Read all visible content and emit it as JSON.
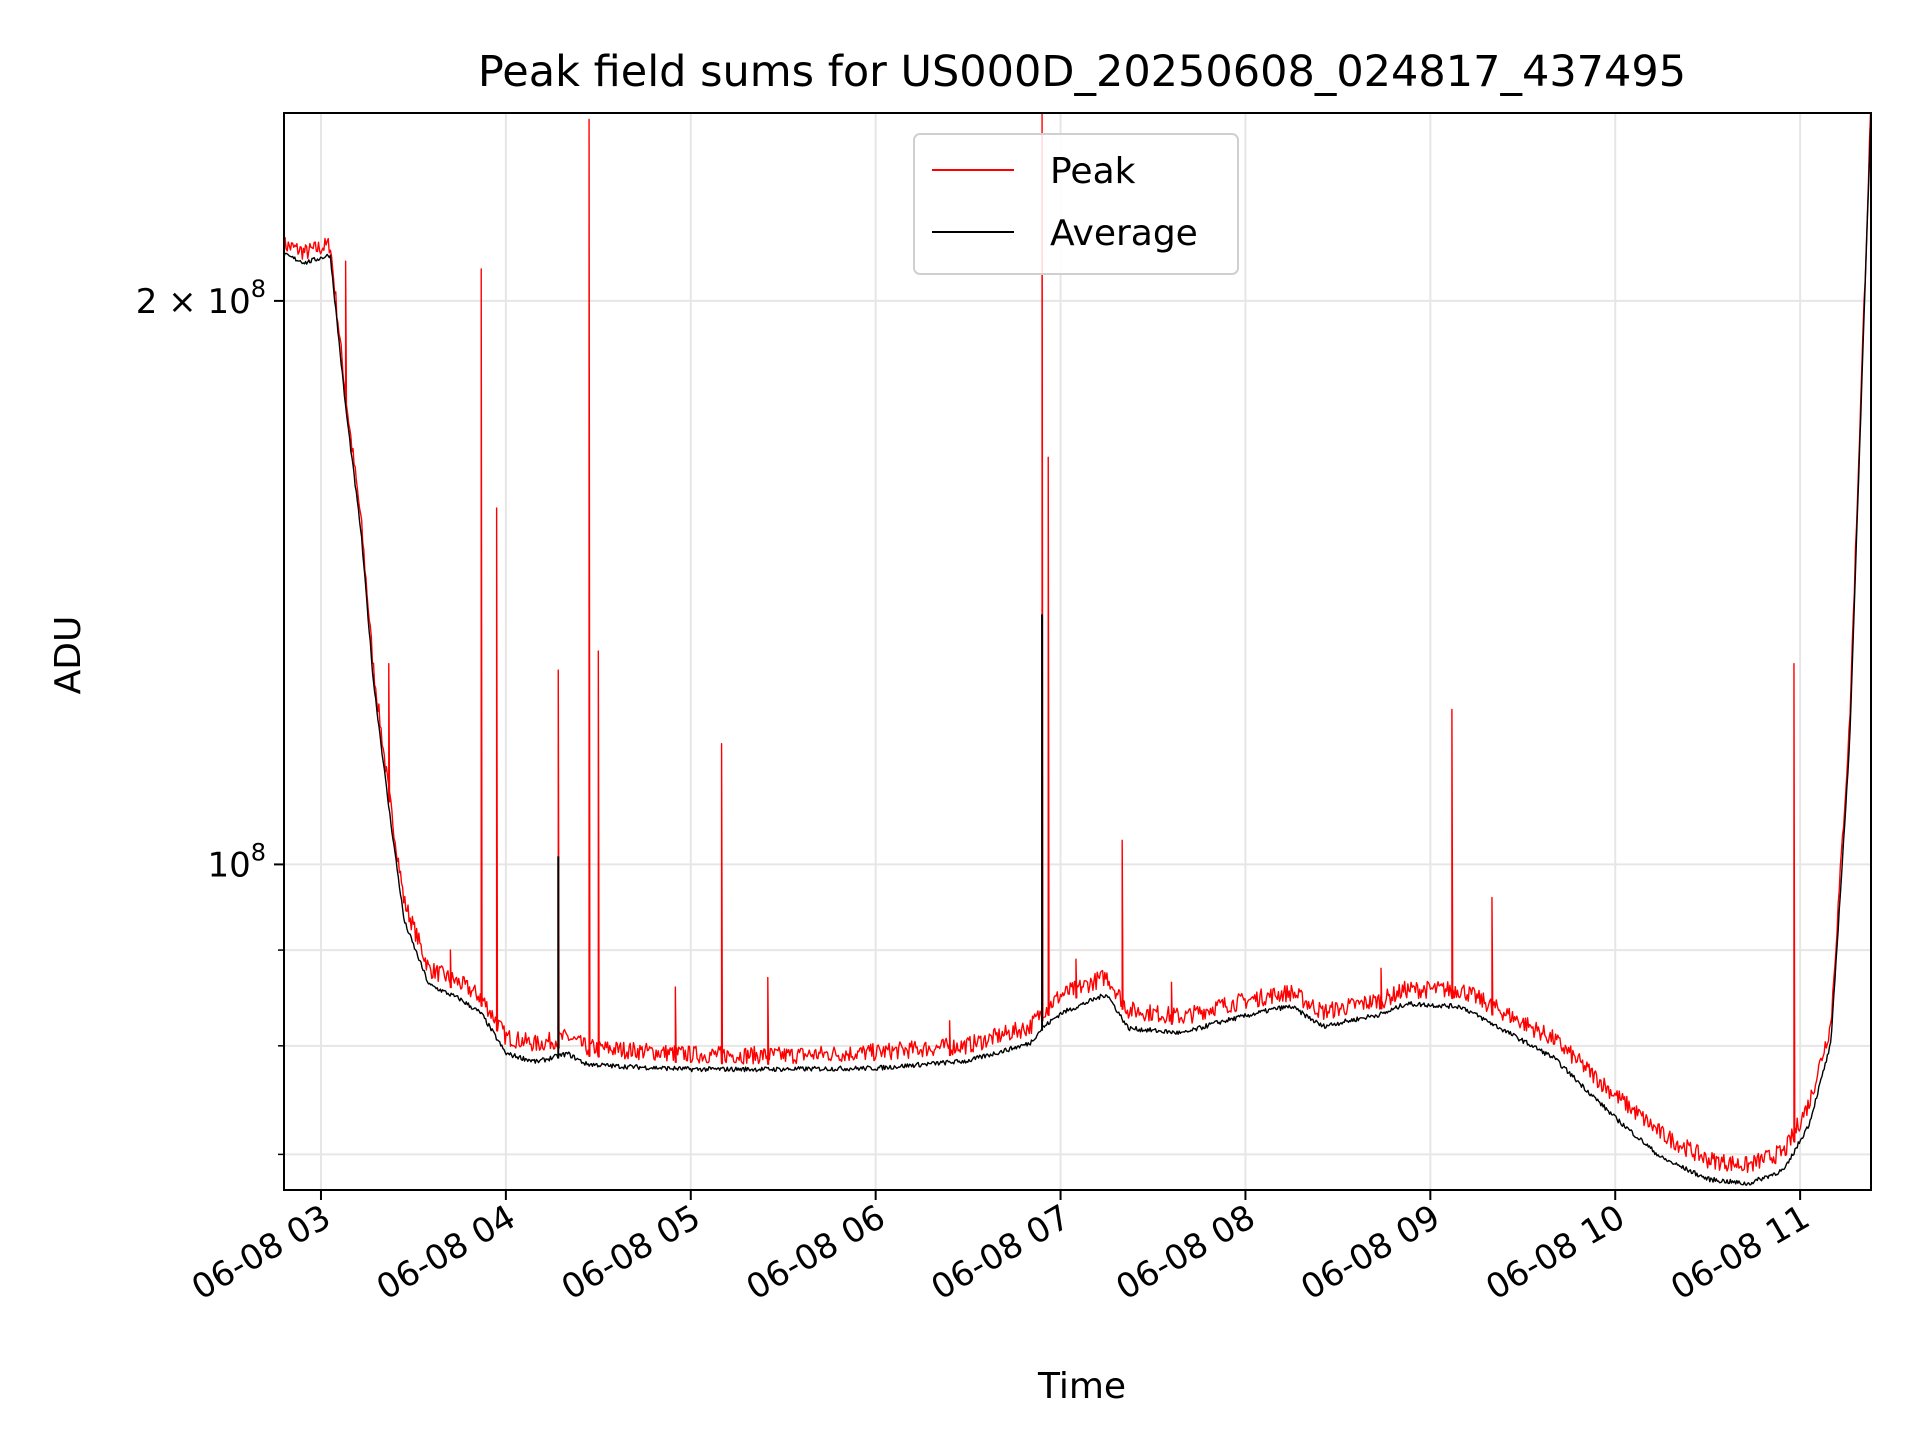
{
  "chart_data": {
    "type": "line",
    "title": "Peak field sums for US000D_20250608_024817_437495",
    "xlabel": "Time",
    "ylabel": "ADU",
    "y_scale": "log",
    "xlim": [
      "2025-06-08 02:48",
      "2025-06-08 11:23"
    ],
    "ylim": [
      67000000,
      252000000
    ],
    "grid": true,
    "legend": {
      "placement": "top-center",
      "entries": [
        "Peak",
        "Average"
      ]
    },
    "x_ticks": [
      {
        "value": "2025-06-08 03:00",
        "label": "06-08 03"
      },
      {
        "value": "2025-06-08 04:00",
        "label": "06-08 04"
      },
      {
        "value": "2025-06-08 05:00",
        "label": "06-08 05"
      },
      {
        "value": "2025-06-08 06:00",
        "label": "06-08 06"
      },
      {
        "value": "2025-06-08 07:00",
        "label": "06-08 07"
      },
      {
        "value": "2025-06-08 08:00",
        "label": "06-08 08"
      },
      {
        "value": "2025-06-08 09:00",
        "label": "06-08 09"
      },
      {
        "value": "2025-06-08 10:00",
        "label": "06-08 10"
      },
      {
        "value": "2025-06-08 11:00",
        "label": "06-08 11"
      }
    ],
    "y_major_ticks": [
      {
        "value": 100000000,
        "base": "10",
        "exp": "8",
        "mult": ""
      },
      {
        "value": 200000000,
        "base": "10",
        "exp": "8",
        "mult": "2 × "
      }
    ],
    "y_minor_ticks": [
      70000000,
      80000000,
      90000000
    ],
    "series": [
      {
        "name": "Average",
        "color": "#000000",
        "x": [
          "2025-06-08 02:48",
          "2025-06-08 02:55",
          "2025-06-08 03:03",
          "2025-06-08 03:08",
          "2025-06-08 03:13",
          "2025-06-08 03:17",
          "2025-06-08 03:22",
          "2025-06-08 03:27",
          "2025-06-08 03:35",
          "2025-06-08 03:45",
          "2025-06-08 03:52",
          "2025-06-08 03:56",
          "2025-06-08 04:00",
          "2025-06-08 04:10",
          "2025-06-08 04:20",
          "2025-06-08 04:26",
          "2025-06-08 04:35",
          "2025-06-08 05:00",
          "2025-06-08 05:30",
          "2025-06-08 06:00",
          "2025-06-08 06:30",
          "2025-06-08 06:50",
          "2025-06-08 06:54",
          "2025-06-08 07:00",
          "2025-06-08 07:15",
          "2025-06-08 07:22",
          "2025-06-08 07:40",
          "2025-06-08 07:50",
          "2025-06-08 08:10",
          "2025-06-08 08:15",
          "2025-06-08 08:25",
          "2025-06-08 08:45",
          "2025-06-08 08:52",
          "2025-06-08 09:10",
          "2025-06-08 09:40",
          "2025-06-08 10:00",
          "2025-06-08 10:15",
          "2025-06-08 10:30",
          "2025-06-08 10:43",
          "2025-06-08 10:55",
          "2025-06-08 11:03",
          "2025-06-08 11:10",
          "2025-06-08 11:16",
          "2025-06-08 11:23"
        ],
        "values": [
          211000000,
          209000000,
          211000000,
          175000000,
          150000000,
          125000000,
          107000000,
          93000000,
          86000000,
          84500000,
          83000000,
          81000000,
          79000000,
          78200000,
          79000000,
          78000000,
          77800000,
          77500000,
          77500000,
          77600000,
          78300000,
          80000000,
          81500000,
          83000000,
          85000000,
          81500000,
          81000000,
          82000000,
          83500000,
          83700000,
          81700000,
          83000000,
          84000000,
          83700000,
          78600000,
          73000000,
          69500000,
          67700000,
          67300000,
          68500000,
          72500000,
          80000000,
          115000000,
          251000000
        ]
      },
      {
        "name": "Peak",
        "color": "#ff0000",
        "x": [
          "2025-06-08 02:48",
          "2025-06-08 02:55",
          "2025-06-08 03:03",
          "2025-06-08 03:08",
          "2025-06-08 03:13",
          "2025-06-08 03:17",
          "2025-06-08 03:22",
          "2025-06-08 03:27",
          "2025-06-08 03:35",
          "2025-06-08 03:45",
          "2025-06-08 03:52",
          "2025-06-08 03:56",
          "2025-06-08 04:00",
          "2025-06-08 04:10",
          "2025-06-08 04:20",
          "2025-06-08 04:26",
          "2025-06-08 04:35",
          "2025-06-08 05:00",
          "2025-06-08 05:30",
          "2025-06-08 06:00",
          "2025-06-08 06:30",
          "2025-06-08 06:50",
          "2025-06-08 06:54",
          "2025-06-08 07:00",
          "2025-06-08 07:15",
          "2025-06-08 07:22",
          "2025-06-08 07:40",
          "2025-06-08 07:50",
          "2025-06-08 08:10",
          "2025-06-08 08:15",
          "2025-06-08 08:25",
          "2025-06-08 08:45",
          "2025-06-08 08:52",
          "2025-06-08 09:10",
          "2025-06-08 09:40",
          "2025-06-08 10:00",
          "2025-06-08 10:15",
          "2025-06-08 10:30",
          "2025-06-08 10:43",
          "2025-06-08 10:55",
          "2025-06-08 11:03",
          "2025-06-08 11:10",
          "2025-06-08 11:16",
          "2025-06-08 11:23"
        ],
        "values": [
          212000000,
          210000000,
          212000000,
          176000000,
          151000000,
          126000000,
          108000000,
          94500000,
          87000000,
          85500000,
          84000000,
          82000000,
          80000000,
          79300000,
          80000000,
          79000000,
          78800000,
          78300000,
          78200000,
          78500000,
          79200000,
          81000000,
          82500000,
          84200000,
          86200000,
          82700000,
          82000000,
          83000000,
          84300000,
          84500000,
          82500000,
          83800000,
          84800000,
          84800000,
          79800000,
          74500000,
          71000000,
          68800000,
          68300000,
          69500000,
          73800000,
          81300000,
          117000000,
          252000000
        ],
        "spikes": [
          {
            "x": "2025-06-08 03:08",
            "value": 210000000
          },
          {
            "x": "2025-06-08 03:22",
            "value": 128000000
          },
          {
            "x": "2025-06-08 03:42",
            "value": 90000000
          },
          {
            "x": "2025-06-08 03:52",
            "value": 208000000
          },
          {
            "x": "2025-06-08 03:57",
            "value": 155000000
          },
          {
            "x": "2025-06-08 04:17",
            "value": 127000000
          },
          {
            "x": "2025-06-08 04:27",
            "value": 250000000
          },
          {
            "x": "2025-06-08 04:30",
            "value": 130000000
          },
          {
            "x": "2025-06-08 04:55",
            "value": 86000000
          },
          {
            "x": "2025-06-08 05:10",
            "value": 116000000
          },
          {
            "x": "2025-06-08 05:25",
            "value": 87000000
          },
          {
            "x": "2025-06-08 06:24",
            "value": 82500000
          },
          {
            "x": "2025-06-08 06:54",
            "value": 252000000
          },
          {
            "x": "2025-06-08 06:56",
            "value": 165000000
          },
          {
            "x": "2025-06-08 07:05",
            "value": 89000000
          },
          {
            "x": "2025-06-08 07:20",
            "value": 103000000
          },
          {
            "x": "2025-06-08 07:36",
            "value": 86500000
          },
          {
            "x": "2025-06-08 08:44",
            "value": 88000000
          },
          {
            "x": "2025-06-08 09:07",
            "value": 121000000
          },
          {
            "x": "2025-06-08 09:20",
            "value": 96000000
          },
          {
            "x": "2025-06-08 10:58",
            "value": 128000000
          }
        ]
      }
    ]
  }
}
